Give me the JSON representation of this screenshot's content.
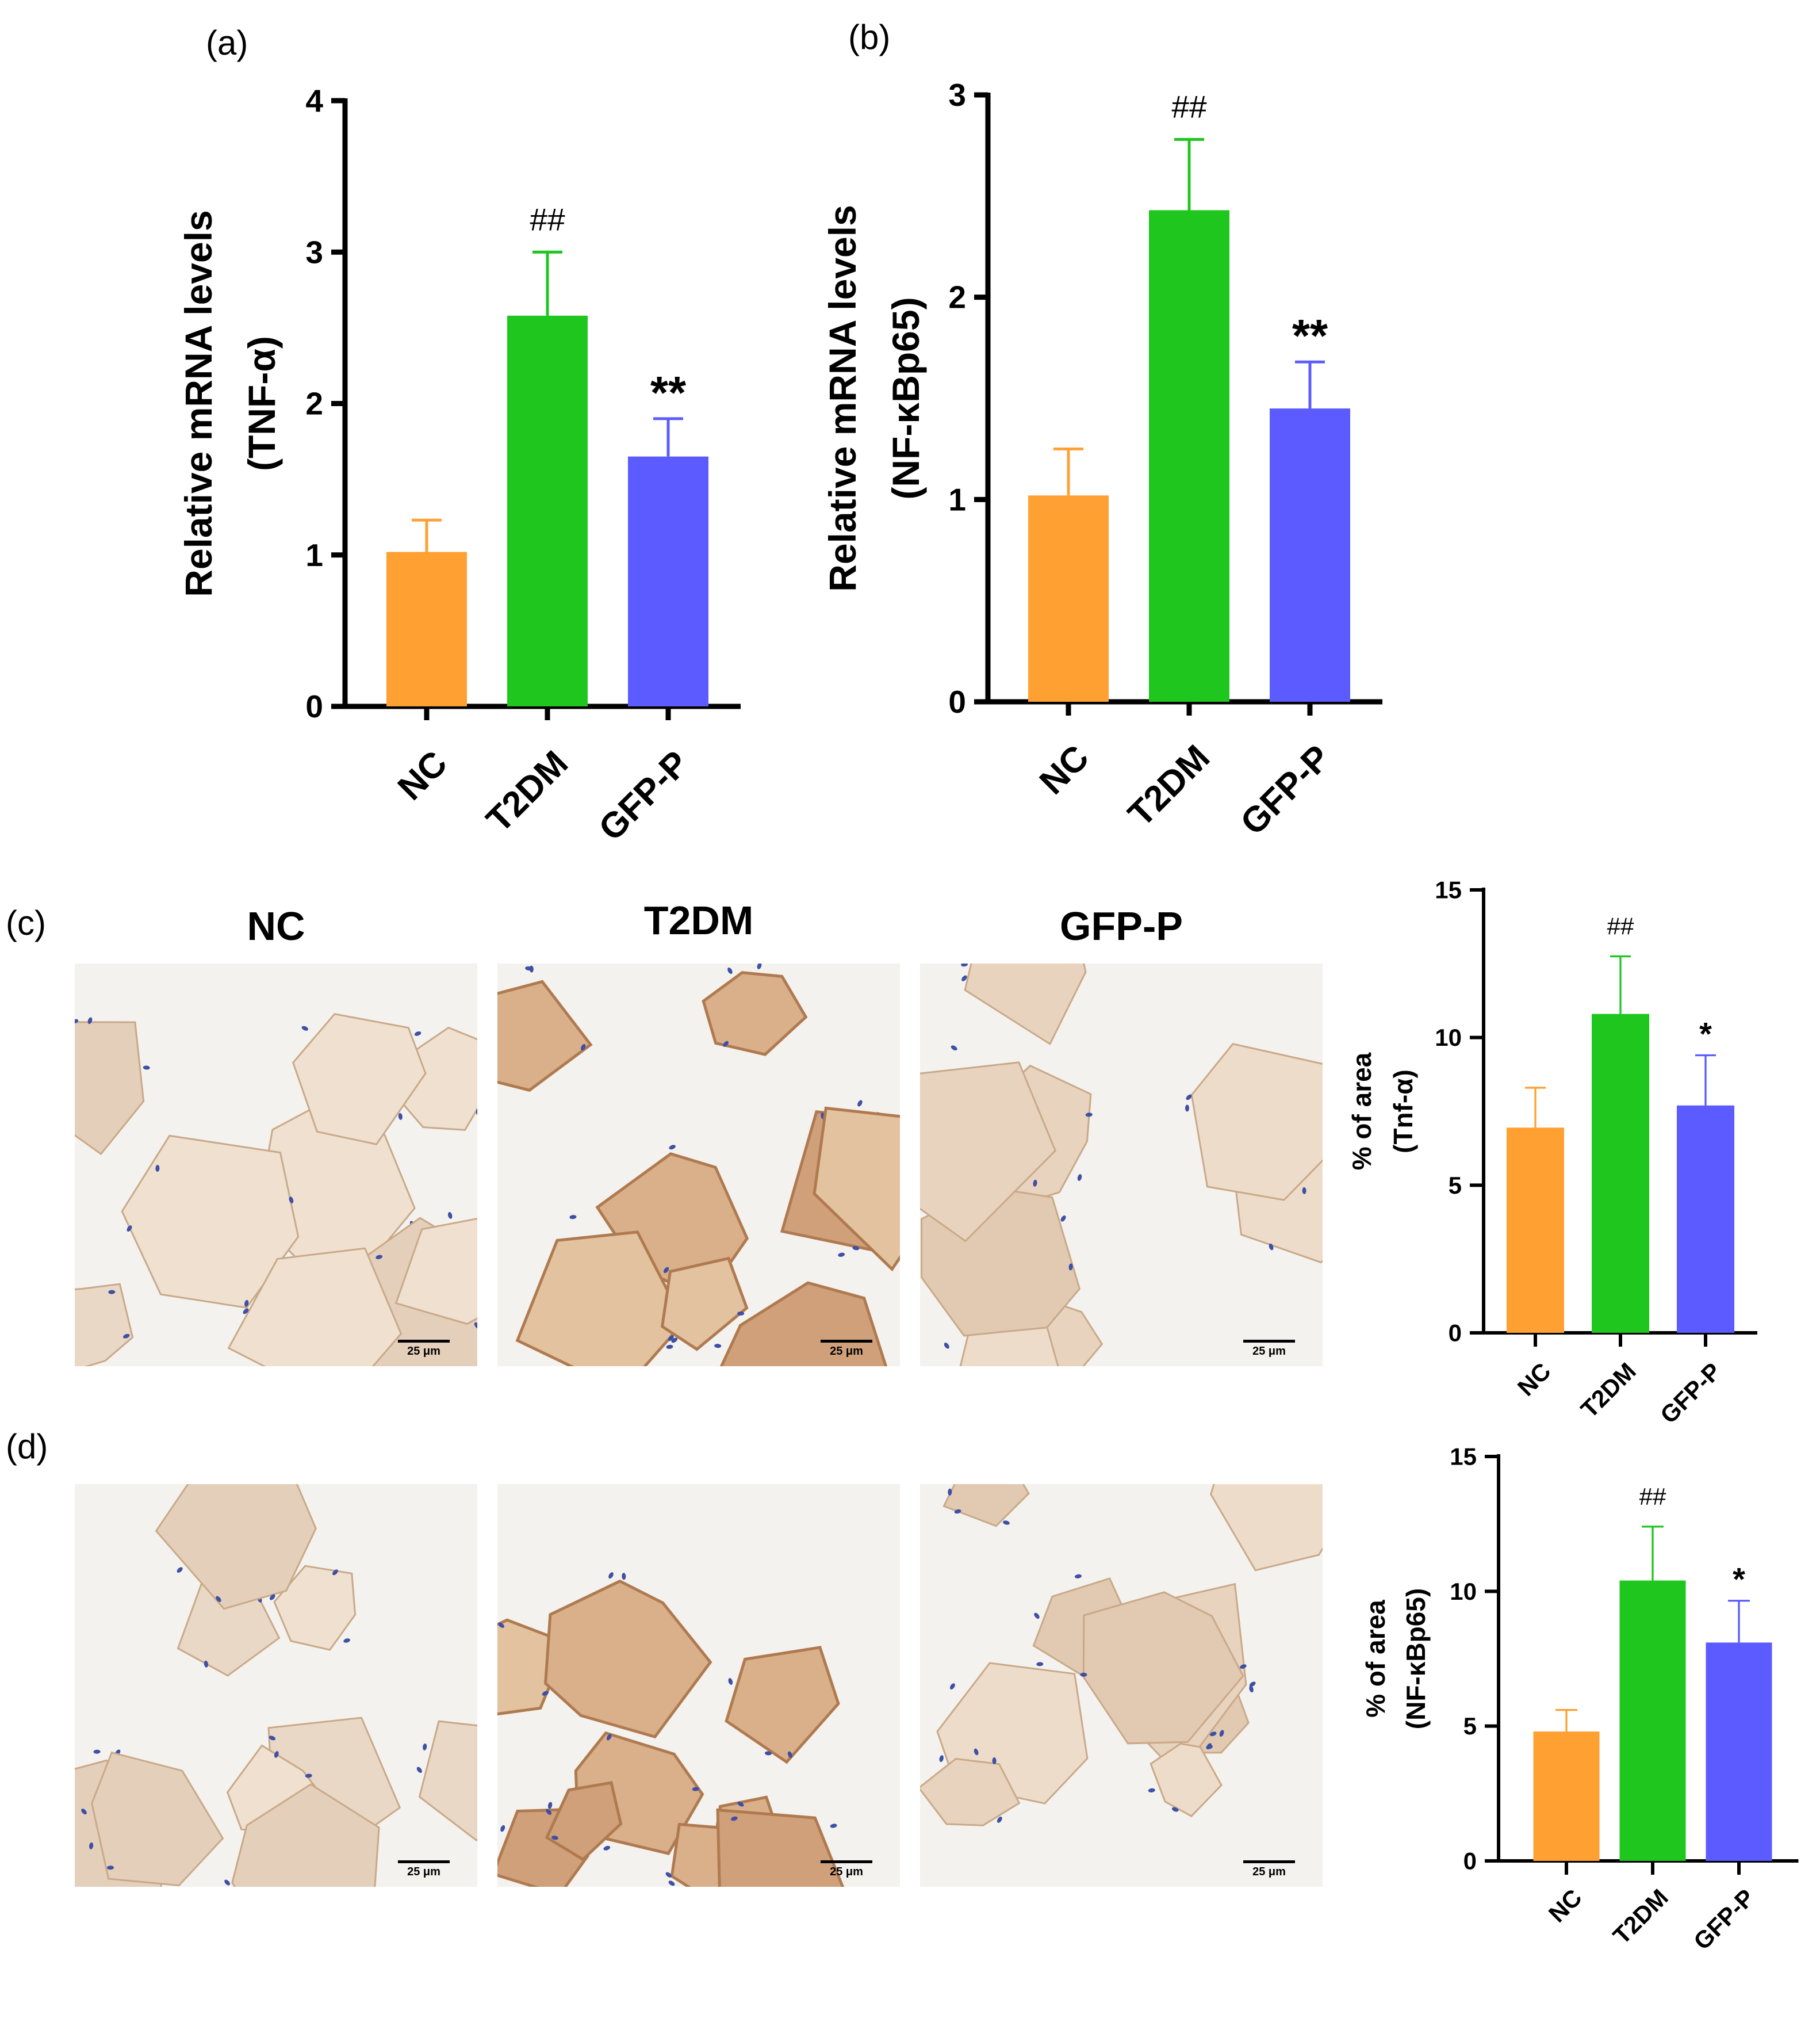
{
  "panels": {
    "a": "(a)",
    "b": "(b)",
    "c": "(c)",
    "d": "(d)"
  },
  "image_columns": [
    "NC",
    "T2DM",
    "GFP-P"
  ],
  "scale_bar": "25 μm",
  "colors": {
    "NC": "#ffa033",
    "T2DM": "#1ec61e",
    "GFP-P": "#5b5bff",
    "axis": "#000000",
    "tissue": "#ecd9c6",
    "nuclei": "#3e4fa6"
  },
  "chart_data": [
    {
      "id": "a",
      "type": "bar",
      "categories": [
        "NC",
        "T2DM",
        "GFP-P"
      ],
      "values": [
        1.02,
        2.58,
        1.65
      ],
      "errors": [
        0.21,
        0.42,
        0.25
      ],
      "annotations": [
        "",
        "##",
        "**"
      ],
      "ylabel": [
        "Relative mRNA levels",
        "(TNF-α)"
      ],
      "yticks": [
        0,
        1,
        2,
        3,
        4
      ],
      "ylim": [
        0,
        4
      ]
    },
    {
      "id": "b",
      "type": "bar",
      "categories": [
        "NC",
        "T2DM",
        "GFP-P"
      ],
      "values": [
        1.02,
        2.43,
        1.45
      ],
      "errors": [
        0.23,
        0.35,
        0.23
      ],
      "annotations": [
        "",
        "##",
        "**"
      ],
      "ylabel": [
        "Relative mRNA levels",
        "(NF-κBp65)"
      ],
      "yticks": [
        0,
        1,
        2,
        3
      ],
      "ylim": [
        0,
        3
      ]
    },
    {
      "id": "c",
      "type": "bar",
      "categories": [
        "NC",
        "T2DM",
        "GFP-P"
      ],
      "values": [
        6.95,
        10.8,
        7.7
      ],
      "errors": [
        1.35,
        1.95,
        1.7
      ],
      "annotations": [
        "",
        "##",
        "*"
      ],
      "ylabel": [
        "% of area",
        "(Tnf-α)"
      ],
      "yticks": [
        0,
        5,
        10,
        15
      ],
      "ylim": [
        0,
        15
      ]
    },
    {
      "id": "d",
      "type": "bar",
      "categories": [
        "NC",
        "T2DM",
        "GFP-P"
      ],
      "values": [
        4.8,
        10.4,
        8.1
      ],
      "errors": [
        0.8,
        2.0,
        1.55
      ],
      "annotations": [
        "",
        "##",
        "*"
      ],
      "ylabel": [
        "% of area",
        "(NF-κBp65)"
      ],
      "yticks": [
        0,
        5,
        10,
        15
      ],
      "ylim": [
        0,
        15
      ]
    }
  ]
}
